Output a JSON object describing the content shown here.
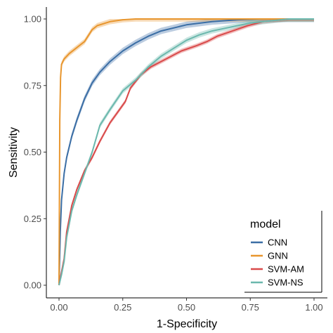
{
  "chart_data": {
    "type": "line",
    "xlabel": "1-Specificity",
    "ylabel": "Sensitivity",
    "xlim": [
      0,
      1
    ],
    "ylim": [
      0,
      1
    ],
    "x_ticks": [
      "0.00",
      "0.25",
      "0.50",
      "0.75",
      "1.00"
    ],
    "y_ticks": [
      "0.00",
      "0.25",
      "0.50",
      "0.75",
      "1.00"
    ],
    "grid": false,
    "legend": {
      "title": "model",
      "position": "bottom-right"
    },
    "series": [
      {
        "name": "CNN",
        "color": "#3b6ea5",
        "band": 0.012,
        "points": [
          [
            0,
            0
          ],
          [
            0.005,
            0.2
          ],
          [
            0.01,
            0.32
          ],
          [
            0.02,
            0.42
          ],
          [
            0.03,
            0.48
          ],
          [
            0.05,
            0.56
          ],
          [
            0.07,
            0.62
          ],
          [
            0.1,
            0.7
          ],
          [
            0.13,
            0.76
          ],
          [
            0.16,
            0.8
          ],
          [
            0.2,
            0.84
          ],
          [
            0.25,
            0.88
          ],
          [
            0.3,
            0.91
          ],
          [
            0.35,
            0.935
          ],
          [
            0.4,
            0.955
          ],
          [
            0.5,
            0.978
          ],
          [
            0.6,
            0.99
          ],
          [
            0.7,
            0.997
          ],
          [
            0.8,
            1.0
          ],
          [
            1.0,
            1.0
          ]
        ]
      },
      {
        "name": "GNN",
        "color": "#e8962e",
        "band": 0.01,
        "points": [
          [
            0,
            0
          ],
          [
            0.003,
            0.62
          ],
          [
            0.006,
            0.78
          ],
          [
            0.01,
            0.83
          ],
          [
            0.02,
            0.85
          ],
          [
            0.04,
            0.87
          ],
          [
            0.06,
            0.885
          ],
          [
            0.08,
            0.9
          ],
          [
            0.1,
            0.915
          ],
          [
            0.12,
            0.945
          ],
          [
            0.13,
            0.96
          ],
          [
            0.15,
            0.975
          ],
          [
            0.2,
            0.99
          ],
          [
            0.25,
            0.997
          ],
          [
            0.3,
            1.0
          ],
          [
            1.0,
            1.0
          ]
        ]
      },
      {
        "name": "SVM-AM",
        "color": "#d94a4a",
        "band": 0.008,
        "points": [
          [
            0,
            0
          ],
          [
            0.01,
            0.05
          ],
          [
            0.02,
            0.1
          ],
          [
            0.03,
            0.2
          ],
          [
            0.05,
            0.3
          ],
          [
            0.07,
            0.36
          ],
          [
            0.1,
            0.43
          ],
          [
            0.13,
            0.48
          ],
          [
            0.16,
            0.54
          ],
          [
            0.2,
            0.61
          ],
          [
            0.23,
            0.65
          ],
          [
            0.26,
            0.69
          ],
          [
            0.28,
            0.74
          ],
          [
            0.32,
            0.79
          ],
          [
            0.36,
            0.82
          ],
          [
            0.42,
            0.85
          ],
          [
            0.48,
            0.88
          ],
          [
            0.54,
            0.9
          ],
          [
            0.58,
            0.915
          ],
          [
            0.62,
            0.935
          ],
          [
            0.68,
            0.955
          ],
          [
            0.74,
            0.975
          ],
          [
            0.8,
            0.99
          ],
          [
            0.9,
            1.0
          ],
          [
            1.0,
            1.0
          ]
        ]
      },
      {
        "name": "SVM-NS",
        "color": "#6bb8ad",
        "band": 0.01,
        "points": [
          [
            0,
            0
          ],
          [
            0.01,
            0.04
          ],
          [
            0.02,
            0.09
          ],
          [
            0.03,
            0.18
          ],
          [
            0.05,
            0.28
          ],
          [
            0.07,
            0.34
          ],
          [
            0.1,
            0.42
          ],
          [
            0.13,
            0.5
          ],
          [
            0.16,
            0.6
          ],
          [
            0.2,
            0.66
          ],
          [
            0.25,
            0.73
          ],
          [
            0.3,
            0.77
          ],
          [
            0.35,
            0.82
          ],
          [
            0.4,
            0.86
          ],
          [
            0.45,
            0.89
          ],
          [
            0.5,
            0.92
          ],
          [
            0.55,
            0.94
          ],
          [
            0.6,
            0.955
          ],
          [
            0.65,
            0.965
          ],
          [
            0.7,
            0.975
          ],
          [
            0.75,
            0.985
          ],
          [
            0.8,
            0.99
          ],
          [
            0.9,
            1.0
          ],
          [
            1.0,
            1.0
          ]
        ]
      }
    ]
  }
}
